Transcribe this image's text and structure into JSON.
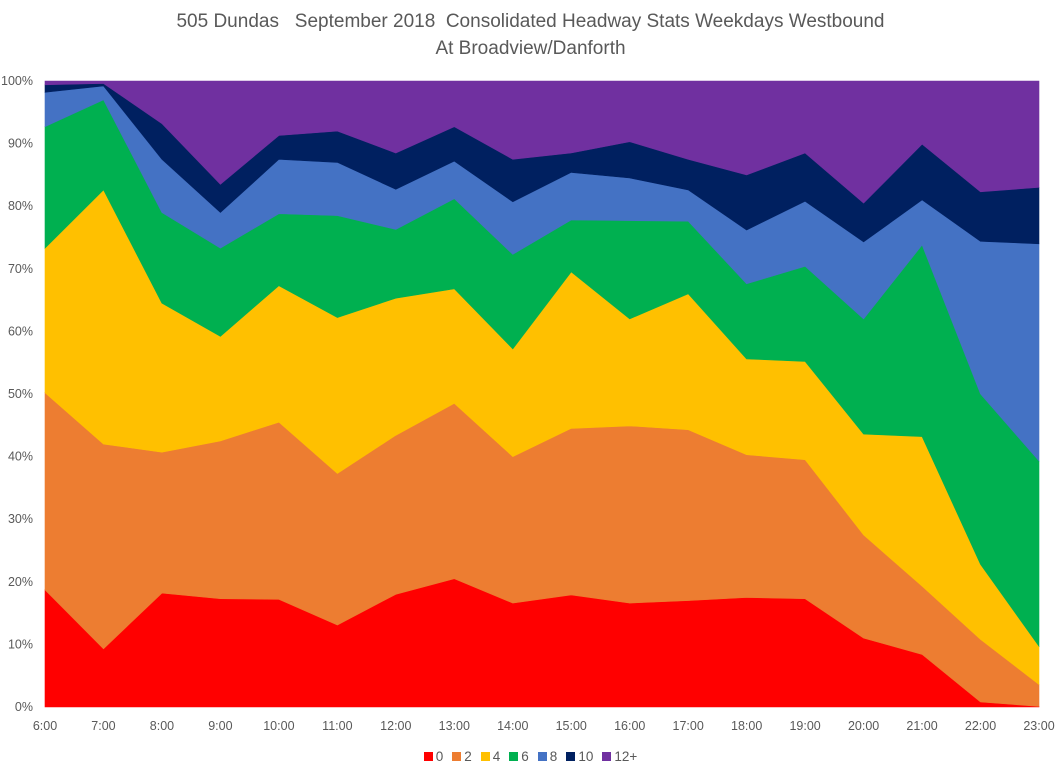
{
  "chart_data": {
    "type": "area",
    "stacked": "percent",
    "title": "505 Dundas   September 2018  Consolidated Headway Stats Weekdays Westbound",
    "subtitle": "At Broadview/Danforth",
    "xlabel": "",
    "ylabel": "",
    "ylim": [
      0,
      100
    ],
    "y_ticks": [
      "0%",
      "10%",
      "20%",
      "30%",
      "40%",
      "50%",
      "60%",
      "70%",
      "80%",
      "90%",
      "100%"
    ],
    "categories": [
      "6:00",
      "7:00",
      "8:00",
      "9:00",
      "10:00",
      "11:00",
      "12:00",
      "13:00",
      "14:00",
      "15:00",
      "16:00",
      "17:00",
      "18:00",
      "19:00",
      "20:00",
      "21:00",
      "22:00",
      "23:00"
    ],
    "legend_position": "bottom",
    "grid": false,
    "series": [
      {
        "name": "0",
        "color": "#FF0000",
        "values": [
          18.7,
          9.3,
          18.2,
          17.3,
          17.2,
          13.1,
          18.0,
          20.5,
          16.6,
          17.9,
          16.6,
          17.0,
          17.5,
          17.3,
          11.0,
          8.4,
          0.8,
          0.1
        ]
      },
      {
        "name": "2",
        "color": "#ED7D31",
        "values": [
          31.5,
          32.7,
          22.5,
          25.2,
          28.3,
          24.2,
          25.4,
          28.0,
          23.4,
          26.6,
          28.3,
          27.3,
          22.8,
          22.2,
          16.5,
          10.9,
          10.0,
          3.5
        ]
      },
      {
        "name": "4",
        "color": "#FFC000",
        "values": [
          23.1,
          40.6,
          23.8,
          16.7,
          21.8,
          24.9,
          21.9,
          18.3,
          17.2,
          25.0,
          17.1,
          21.7,
          15.3,
          15.7,
          16.1,
          23.9,
          12.0,
          6.1
        ]
      },
      {
        "name": "6",
        "color": "#00B050",
        "values": [
          19.4,
          14.4,
          14.5,
          14.1,
          11.5,
          16.3,
          11.0,
          14.4,
          15.1,
          8.3,
          15.7,
          11.6,
          12.0,
          15.2,
          18.4,
          30.6,
          27.2,
          29.6
        ]
      },
      {
        "name": "8",
        "color": "#4472C4",
        "values": [
          5.5,
          2.2,
          8.5,
          5.7,
          8.7,
          8.5,
          6.4,
          6.0,
          8.4,
          7.6,
          6.8,
          5.0,
          8.6,
          10.4,
          12.3,
          7.2,
          24.4,
          34.7
        ]
      },
      {
        "name": "10",
        "color": "#002060",
        "values": [
          1.2,
          0.4,
          5.7,
          4.5,
          3.8,
          5.0,
          5.8,
          5.5,
          6.8,
          3.1,
          5.8,
          4.9,
          8.8,
          7.7,
          6.2,
          8.9,
          7.9,
          9.0
        ]
      },
      {
        "name": "12+",
        "color": "#7030A0",
        "values": [
          0.6,
          0.4,
          6.8,
          16.5,
          8.7,
          8.0,
          11.5,
          7.3,
          12.5,
          11.5,
          9.7,
          12.5,
          15.0,
          11.5,
          19.5,
          10.1,
          17.7,
          17.0
        ]
      }
    ]
  }
}
